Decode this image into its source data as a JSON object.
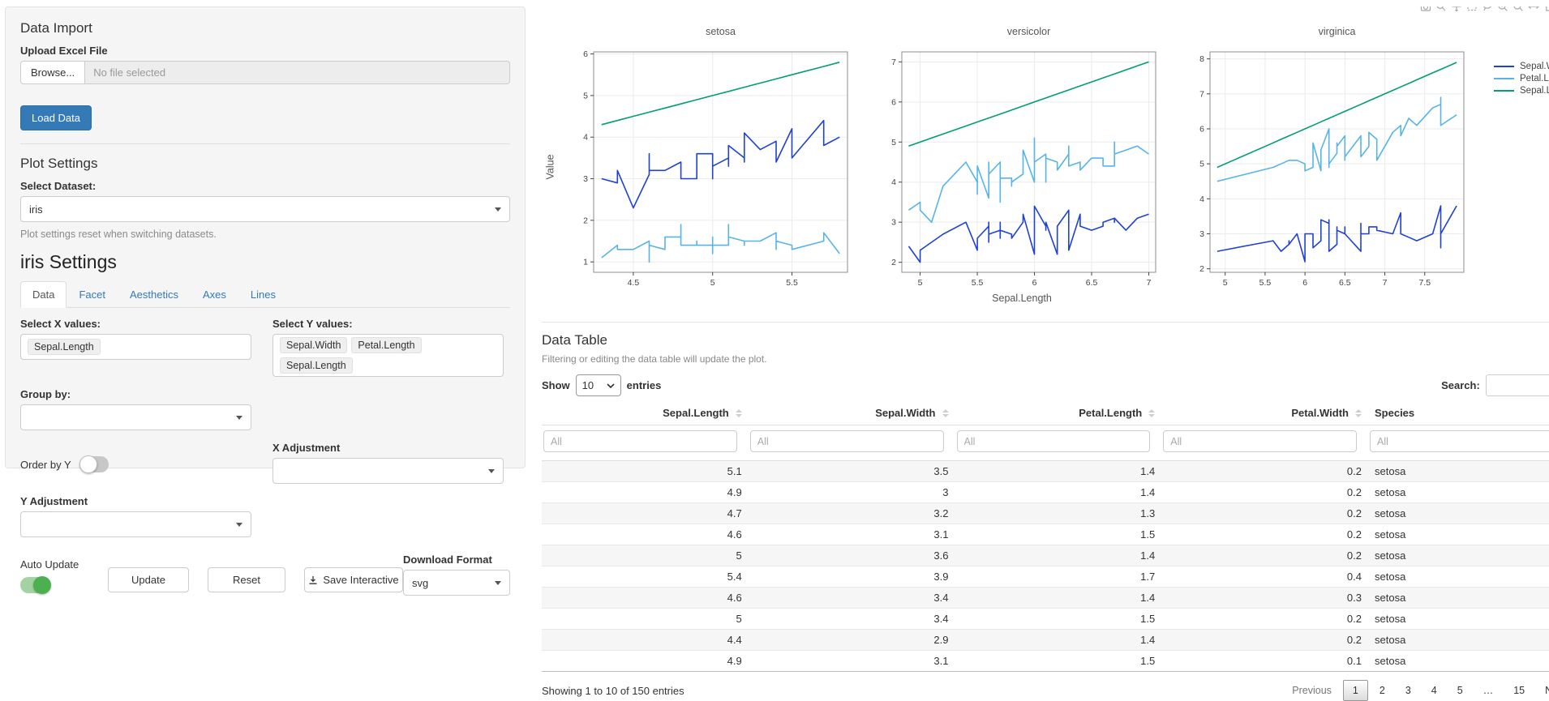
{
  "sidebar": {
    "data_import": {
      "title": "Data Import",
      "upload_label": "Upload Excel File",
      "browse_label": "Browse...",
      "file_placeholder": "No file selected",
      "load_button": "Load Data"
    },
    "plot_settings": {
      "title": "Plot Settings",
      "dataset_label": "Select Dataset:",
      "dataset_value": "iris",
      "help_text": "Plot settings reset when switching datasets."
    },
    "iris_settings": {
      "title": "iris Settings",
      "tabs": [
        {
          "label": "Data",
          "active": true
        },
        {
          "label": "Facet",
          "active": false
        },
        {
          "label": "Aesthetics",
          "active": false
        },
        {
          "label": "Axes",
          "active": false
        },
        {
          "label": "Lines",
          "active": false
        }
      ],
      "select_x_label": "Select X values:",
      "x_values": [
        "Sepal.Length"
      ],
      "select_y_label": "Select Y values:",
      "y_values": [
        "Sepal.Width",
        "Petal.Length",
        "Sepal.Length"
      ],
      "group_by_label": "Group by:",
      "order_by_y_label": "Order by Y",
      "order_by_y_on": false,
      "x_adjustment_label": "X Adjustment",
      "y_adjustment_label": "Y Adjustment",
      "auto_update_label": "Auto Update",
      "auto_update_on": true,
      "update_button": "Update",
      "reset_button": "Reset",
      "save_interactive_button": "Save Interactive",
      "download_format_label": "Download Format",
      "download_format_value": "svg"
    }
  },
  "plot": {
    "y_axis_label": "Value",
    "x_axis_label": "Sepal.Length",
    "legend": [
      {
        "label": "Sepal.Width",
        "color": "#1F41D6"
      },
      {
        "label": "Petal.Length",
        "color": "#56B4E9"
      },
      {
        "label": "Sepal.Length",
        "color": "#009E73"
      }
    ],
    "modebar_icons": [
      "camera-icon",
      "zoom-icon",
      "pan-icon",
      "box-select-icon",
      "lasso-select-icon",
      "zoom-in-icon",
      "zoom-out-icon",
      "autoscale-icon",
      "reset-axes-icon",
      "plotly-logo-icon"
    ]
  },
  "chart_data": [
    {
      "type": "line",
      "facet": "setosa",
      "x_label": "Sepal.Length",
      "y_label": "Value",
      "x_range": [
        4.25,
        5.85
      ],
      "y_range": [
        0.75,
        6.05
      ],
      "x_ticks": [
        4.5,
        5,
        5.5
      ],
      "y_ticks": [
        1,
        2,
        3,
        4,
        5,
        6
      ],
      "x": [
        5.1,
        4.9,
        4.7,
        4.6,
        5.0,
        5.4,
        4.6,
        5.0,
        4.4,
        4.9,
        5.4,
        4.8,
        4.8,
        4.3,
        5.8,
        5.7,
        5.4,
        5.1,
        5.7,
        5.1,
        5.4,
        5.1,
        4.6,
        5.1,
        4.8,
        5.0,
        5.0,
        5.2,
        5.2,
        4.7,
        4.8,
        5.4,
        5.2,
        5.5,
        4.9,
        5.0,
        5.5,
        4.9,
        4.4,
        5.1,
        5.0,
        4.5,
        4.4,
        5.0,
        5.1,
        4.8,
        5.1,
        4.6,
        5.3,
        5.0
      ],
      "series": [
        {
          "name": "Sepal.Width",
          "color": "#1F41D6",
          "values": [
            3.5,
            3.0,
            3.2,
            3.1,
            3.6,
            3.9,
            3.4,
            3.4,
            2.9,
            3.1,
            3.7,
            3.4,
            3.0,
            3.0,
            4.0,
            4.4,
            3.9,
            3.5,
            3.8,
            3.8,
            3.4,
            3.7,
            3.6,
            3.3,
            3.4,
            3.0,
            3.4,
            3.5,
            3.4,
            3.2,
            3.1,
            3.4,
            4.1,
            4.2,
            3.1,
            3.2,
            3.5,
            3.6,
            3.0,
            3.4,
            3.5,
            2.3,
            3.2,
            3.5,
            3.8,
            3.0,
            3.8,
            3.2,
            3.7,
            3.3
          ]
        },
        {
          "name": "Petal.Length",
          "color": "#56B4E9",
          "values": [
            1.4,
            1.4,
            1.3,
            1.5,
            1.4,
            1.7,
            1.4,
            1.5,
            1.4,
            1.5,
            1.5,
            1.6,
            1.4,
            1.1,
            1.2,
            1.5,
            1.3,
            1.4,
            1.7,
            1.5,
            1.7,
            1.5,
            1.0,
            1.7,
            1.9,
            1.6,
            1.6,
            1.5,
            1.4,
            1.6,
            1.6,
            1.5,
            1.5,
            1.4,
            1.5,
            1.2,
            1.3,
            1.4,
            1.3,
            1.5,
            1.3,
            1.3,
            1.3,
            1.6,
            1.9,
            1.4,
            1.6,
            1.4,
            1.5,
            1.4
          ]
        },
        {
          "name": "Sepal.Length",
          "color": "#009E73",
          "values": "x"
        }
      ]
    },
    {
      "type": "line",
      "facet": "versicolor",
      "x_label": "Sepal.Length",
      "y_label": "Value",
      "x_range": [
        4.84,
        7.06
      ],
      "y_range": [
        1.75,
        7.25
      ],
      "x_ticks": [
        5,
        5.5,
        6,
        6.5,
        7
      ],
      "y_ticks": [
        2,
        3,
        4,
        5,
        6,
        7
      ],
      "x": [
        7.0,
        6.4,
        6.9,
        5.5,
        6.5,
        5.7,
        6.3,
        4.9,
        6.6,
        5.2,
        5.0,
        5.9,
        6.0,
        6.1,
        5.6,
        6.7,
        5.6,
        5.8,
        6.2,
        5.6,
        5.9,
        6.1,
        6.3,
        6.1,
        6.4,
        6.6,
        6.8,
        6.7,
        6.0,
        5.7,
        5.5,
        5.5,
        5.8,
        6.0,
        5.4,
        6.0,
        6.7,
        6.3,
        5.6,
        5.5,
        5.5,
        6.1,
        5.8,
        5.0,
        5.6,
        5.7,
        5.7,
        6.2,
        5.1,
        5.7
      ],
      "series": [
        {
          "name": "Sepal.Width",
          "color": "#1F41D6",
          "values": [
            3.2,
            3.2,
            3.1,
            2.3,
            2.8,
            2.8,
            3.3,
            2.4,
            2.9,
            2.7,
            2.0,
            3.0,
            2.2,
            2.9,
            2.9,
            3.1,
            3.0,
            2.7,
            2.2,
            2.5,
            3.2,
            2.8,
            2.5,
            2.8,
            2.9,
            3.0,
            2.8,
            3.0,
            2.9,
            2.6,
            2.4,
            2.4,
            2.7,
            2.7,
            3.0,
            3.4,
            3.1,
            2.3,
            3.0,
            2.5,
            2.6,
            3.0,
            2.6,
            2.3,
            2.7,
            3.0,
            2.9,
            2.9,
            2.5,
            2.8
          ]
        },
        {
          "name": "Petal.Length",
          "color": "#56B4E9",
          "values": [
            4.7,
            4.5,
            4.9,
            4.0,
            4.6,
            4.5,
            4.7,
            3.3,
            4.6,
            3.9,
            3.5,
            4.2,
            4.0,
            4.7,
            3.6,
            4.4,
            4.5,
            4.1,
            4.5,
            3.9,
            4.8,
            4.0,
            4.9,
            4.7,
            4.3,
            4.4,
            4.8,
            5.0,
            4.5,
            3.5,
            3.8,
            3.7,
            3.9,
            5.1,
            4.5,
            4.5,
            4.7,
            4.4,
            4.1,
            4.0,
            4.4,
            4.6,
            4.0,
            3.3,
            4.2,
            4.2,
            4.2,
            4.3,
            3.0,
            4.1
          ]
        },
        {
          "name": "Sepal.Length",
          "color": "#009E73",
          "values": "x"
        }
      ]
    },
    {
      "type": "line",
      "facet": "virginica",
      "x_label": "Sepal.Length",
      "y_label": "Value",
      "x_range": [
        4.81,
        7.99
      ],
      "y_range": [
        1.9,
        8.2
      ],
      "x_ticks": [
        5,
        5.5,
        6,
        6.5,
        7,
        7.5
      ],
      "y_ticks": [
        2,
        3,
        4,
        5,
        6,
        7,
        8
      ],
      "x": [
        6.3,
        5.8,
        7.1,
        6.3,
        6.5,
        7.6,
        4.9,
        7.3,
        6.7,
        7.2,
        6.5,
        6.4,
        6.8,
        5.7,
        5.8,
        6.4,
        6.5,
        7.7,
        7.7,
        6.0,
        6.9,
        5.6,
        7.7,
        6.3,
        6.7,
        7.2,
        6.2,
        6.1,
        6.4,
        7.2,
        7.4,
        7.9,
        6.4,
        6.3,
        6.1,
        7.7,
        6.3,
        6.4,
        6.0,
        6.9,
        6.7,
        6.9,
        5.8,
        6.8,
        6.7,
        6.7,
        6.3,
        6.5,
        6.2,
        5.9
      ],
      "series": [
        {
          "name": "Sepal.Width",
          "color": "#1F41D6",
          "values": [
            3.3,
            2.7,
            3.0,
            2.9,
            3.0,
            3.0,
            2.5,
            2.9,
            2.5,
            3.6,
            3.2,
            2.7,
            3.0,
            2.5,
            2.8,
            3.2,
            3.0,
            3.8,
            2.6,
            2.2,
            3.2,
            2.8,
            2.8,
            2.7,
            3.3,
            3.2,
            2.8,
            3.0,
            2.8,
            3.0,
            2.8,
            3.8,
            2.8,
            2.8,
            2.6,
            3.0,
            3.4,
            3.1,
            3.0,
            3.1,
            3.1,
            3.1,
            2.7,
            3.2,
            3.3,
            3.0,
            2.5,
            3.0,
            3.4,
            3.0
          ]
        },
        {
          "name": "Petal.Length",
          "color": "#56B4E9",
          "values": [
            6.0,
            5.1,
            5.9,
            5.6,
            5.8,
            6.6,
            4.5,
            6.3,
            5.8,
            6.1,
            5.1,
            5.3,
            5.5,
            5.0,
            5.1,
            5.3,
            5.5,
            6.7,
            6.9,
            5.0,
            5.7,
            4.9,
            6.7,
            4.9,
            5.7,
            6.0,
            4.8,
            4.9,
            5.6,
            5.8,
            6.1,
            6.4,
            5.6,
            5.1,
            5.6,
            6.1,
            5.6,
            5.5,
            4.8,
            5.4,
            5.6,
            5.1,
            5.1,
            5.9,
            5.7,
            5.2,
            5.0,
            5.2,
            5.4,
            5.1
          ]
        },
        {
          "name": "Sepal.Length",
          "color": "#009E73",
          "values": "x"
        }
      ]
    }
  ],
  "data_table": {
    "title": "Data Table",
    "subtitle": "Filtering or editing the data table will update the plot.",
    "show_label": "Show",
    "page_length": "10",
    "entries_label": "entries",
    "search_label": "Search:",
    "filter_placeholder": "All",
    "columns": [
      "Sepal.Length",
      "Sepal.Width",
      "Petal.Length",
      "Petal.Width",
      "Species"
    ],
    "rows": [
      [
        "5.1",
        "3.5",
        "1.4",
        "0.2",
        "setosa"
      ],
      [
        "4.9",
        "3",
        "1.4",
        "0.2",
        "setosa"
      ],
      [
        "4.7",
        "3.2",
        "1.3",
        "0.2",
        "setosa"
      ],
      [
        "4.6",
        "3.1",
        "1.5",
        "0.2",
        "setosa"
      ],
      [
        "5",
        "3.6",
        "1.4",
        "0.2",
        "setosa"
      ],
      [
        "5.4",
        "3.9",
        "1.7",
        "0.4",
        "setosa"
      ],
      [
        "4.6",
        "3.4",
        "1.4",
        "0.3",
        "setosa"
      ],
      [
        "5",
        "3.4",
        "1.5",
        "0.2",
        "setosa"
      ],
      [
        "4.4",
        "2.9",
        "1.4",
        "0.2",
        "setosa"
      ],
      [
        "4.9",
        "3.1",
        "1.5",
        "0.1",
        "setosa"
      ]
    ],
    "info": "Showing 1 to 10 of 150 entries",
    "pagination": {
      "previous": "Previous",
      "pages": [
        "1",
        "2",
        "3",
        "4",
        "5",
        "…",
        "15"
      ],
      "active_page": "1",
      "next": "Next"
    }
  }
}
